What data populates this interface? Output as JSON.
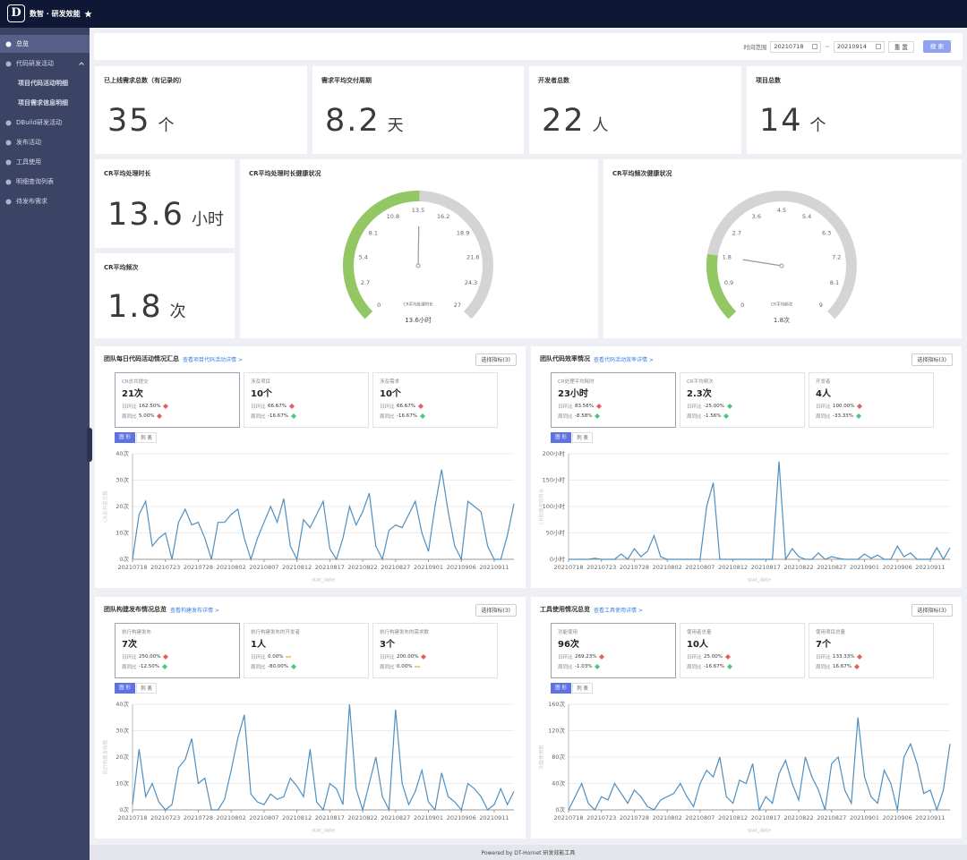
{
  "header": {
    "logo": "D",
    "title": "数智 · 研发效能"
  },
  "sidebar": [
    {
      "label": "总览",
      "active": true
    },
    {
      "label": "代码研发活动",
      "expanded": true
    },
    {
      "label": "项目代码活动明细",
      "sub": true
    },
    {
      "label": "项目需求信息明细",
      "sub": true
    },
    {
      "label": "DBuild研发活动"
    },
    {
      "label": "发布活动"
    },
    {
      "label": "工具使用"
    },
    {
      "label": "明细查询列表"
    },
    {
      "label": "待发布需求"
    }
  ],
  "filter": {
    "label": "时间范围",
    "start": "20210718",
    "separator": "~",
    "end": "20210914",
    "reset": "重 置",
    "search": "搜 索"
  },
  "kpis": [
    {
      "title": "已上线需求总数（有记录的）",
      "value": 35,
      "unit": "个"
    },
    {
      "title": "需求平均交付周期",
      "value": 8.2,
      "unit": "天"
    },
    {
      "title": "开发者总数",
      "value": 22,
      "unit": "人"
    },
    {
      "title": "项目总数",
      "value": 14,
      "unit": "个"
    }
  ],
  "cr_cards": [
    {
      "title": "CR平均处理时长",
      "value": 13.6,
      "unit": "小时"
    },
    {
      "title": "CR平均频次",
      "value": 1.8,
      "unit": "次"
    }
  ],
  "panels": [
    {
      "title": "团队每日代码活动情况汇总",
      "link": "查看项目代码活动详情 >",
      "button": "选择指标(3)",
      "tabs": [
        {
          "label": "图 形",
          "active": true
        },
        {
          "label": "列 表"
        }
      ],
      "cards": [
        {
          "name": "CR总共提交",
          "value": "21次",
          "active": true,
          "rows": [
            {
              "label": "日环比",
              "value": "162.50%",
              "trend": "up"
            },
            {
              "label": "周同比",
              "value": "5.00%",
              "trend": "up"
            }
          ]
        },
        {
          "name": "涉及项目",
          "value": "10个",
          "rows": [
            {
              "label": "日环比",
              "value": "66.67%",
              "trend": "up"
            },
            {
              "label": "周同比",
              "value": "-16.67%",
              "trend": "down"
            }
          ]
        },
        {
          "name": "涉及需求",
          "value": "10个",
          "rows": [
            {
              "label": "日环比",
              "value": "66.67%",
              "trend": "up"
            },
            {
              "label": "周同比",
              "value": "-16.67%",
              "trend": "down"
            }
          ]
        }
      ]
    },
    {
      "title": "团队代码效率情况",
      "link": "查看代码活动效率详情 >",
      "button": "选择指标(3)",
      "tabs": [
        {
          "label": "图 形",
          "active": true
        },
        {
          "label": "列 表"
        }
      ],
      "cards": [
        {
          "name": "CR处理平均耗时",
          "value": "23小时",
          "active": true,
          "rows": [
            {
              "label": "日环比",
              "value": "83.56%",
              "trend": "up"
            },
            {
              "label": "周同比",
              "value": "-8.58%",
              "trend": "down"
            }
          ]
        },
        {
          "name": "CR平均频次",
          "value": "2.3次",
          "rows": [
            {
              "label": "日环比",
              "value": "-25.00%",
              "trend": "down"
            },
            {
              "label": "周同比",
              "value": "-1.56%",
              "trend": "down"
            }
          ]
        },
        {
          "name": "开发者",
          "value": "4人",
          "rows": [
            {
              "label": "日环比",
              "value": "100.00%",
              "trend": "up"
            },
            {
              "label": "周同比",
              "value": "-33.33%",
              "trend": "down"
            }
          ]
        }
      ]
    },
    {
      "title": "团队构建发布情况总览",
      "link": "查看构建发布详情 >",
      "button": "选择指标(3)",
      "tabs": [
        {
          "label": "图 形",
          "active": true
        },
        {
          "label": "列 表"
        }
      ],
      "cards": [
        {
          "name": "执行构建发布",
          "value": "7次",
          "active": true,
          "rows": [
            {
              "label": "日环比",
              "value": "250.00%",
              "trend": "up"
            },
            {
              "label": "周同比",
              "value": "-12.50%",
              "trend": "down"
            }
          ]
        },
        {
          "name": "执行构建发布的开发者",
          "value": "1人",
          "rows": [
            {
              "label": "日环比",
              "value": "0.00%",
              "trend": "flat"
            },
            {
              "label": "周同比",
              "value": "-80.00%",
              "trend": "down"
            }
          ]
        },
        {
          "name": "执行构建发布的需求数",
          "value": "3个",
          "rows": [
            {
              "label": "日环比",
              "value": "200.00%",
              "trend": "up"
            },
            {
              "label": "周同比",
              "value": "0.00%",
              "trend": "flat"
            }
          ]
        }
      ]
    },
    {
      "title": "工具使用情况总览",
      "link": "查看工具使用详情 >",
      "button": "选择指标(3)",
      "tabs": [
        {
          "label": "图 形",
          "active": true
        },
        {
          "label": "列 表"
        }
      ],
      "cards": [
        {
          "name": "功能使用",
          "value": "96次",
          "active": true,
          "rows": [
            {
              "label": "日环比",
              "value": "269.23%",
              "trend": "up"
            },
            {
              "label": "周同比",
              "value": "-1.03%",
              "trend": "down"
            }
          ]
        },
        {
          "name": "使用者总量",
          "value": "10人",
          "rows": [
            {
              "label": "日环比",
              "value": "25.00%",
              "trend": "up"
            },
            {
              "label": "周同比",
              "value": "-16.67%",
              "trend": "down"
            }
          ]
        },
        {
          "name": "使用项目总量",
          "value": "7个",
          "rows": [
            {
              "label": "日环比",
              "value": "133.33%",
              "trend": "up"
            },
            {
              "label": "周同比",
              "value": "16.67%",
              "trend": "up"
            }
          ]
        }
      ]
    }
  ],
  "chart_data": [
    {
      "type": "gauge",
      "title": "CR平均处理时长健康状况",
      "lim": [
        0,
        27
      ],
      "ticks": [
        0,
        2.7,
        5.4,
        8.1,
        10.8,
        13.5,
        16.2,
        18.9,
        21.6,
        24.3,
        27
      ],
      "value": 13.6,
      "detail_name": "CR平均处理时长",
      "value_label": "13.6小时",
      "color": "#93c764",
      "track_color": "#d4d4d4"
    },
    {
      "type": "gauge",
      "title": "CR平均频次健康状况",
      "lim": [
        0,
        9
      ],
      "ticks": [
        0,
        0.9,
        1.8,
        2.7,
        3.6,
        4.5,
        5.4,
        6.3,
        7.2,
        8.1,
        9
      ],
      "value": 1.8,
      "detail_name": "CR平均频次",
      "value_label": "1.8次",
      "color": "#93c764",
      "track_color": "#d4d4d4"
    },
    {
      "type": "line",
      "x_label": "stat_date",
      "y_label": "CR总共提交数",
      "color": "#4f8fc0",
      "grid": true,
      "categories": [
        "20210718",
        null,
        null,
        null,
        null,
        "20210723",
        null,
        null,
        null,
        null,
        "20210728",
        null,
        null,
        null,
        null,
        "20210802",
        null,
        null,
        null,
        null,
        "20210807",
        null,
        null,
        null,
        null,
        "20210812",
        null,
        null,
        null,
        null,
        "20210817",
        null,
        null,
        null,
        null,
        "20210822",
        null,
        null,
        null,
        null,
        "20210827",
        null,
        null,
        null,
        null,
        "20210901",
        null,
        null,
        null,
        null,
        "20210906",
        null,
        null,
        null,
        null,
        "20210911",
        null,
        null,
        null
      ],
      "values": [
        0,
        17,
        22,
        5,
        8,
        10,
        0,
        14,
        19,
        13,
        14,
        8,
        0,
        14,
        14,
        17,
        19,
        8,
        0,
        8,
        14,
        20,
        14,
        23,
        5,
        0,
        15,
        12,
        17,
        22,
        4,
        0,
        8,
        20,
        13,
        18,
        25,
        5,
        0,
        11,
        13,
        12,
        17,
        22,
        10,
        3,
        20,
        34,
        18,
        5,
        0,
        22,
        20,
        18,
        5,
        0,
        0,
        9,
        21
      ],
      "ylim": [
        0,
        40
      ],
      "yticks": [
        {
          "value": 0,
          "label": "0次"
        },
        {
          "value": 10,
          "label": "10次"
        },
        {
          "value": 20,
          "label": "20次"
        },
        {
          "value": 30,
          "label": "30次"
        },
        {
          "value": 40,
          "label": "40次"
        }
      ]
    },
    {
      "type": "line",
      "x_label": "stat_date",
      "y_label": "CR处理平均时长",
      "color": "#4f8fc0",
      "grid": true,
      "categories": [
        "20210718",
        null,
        null,
        null,
        null,
        "20210723",
        null,
        null,
        null,
        null,
        "20210728",
        null,
        null,
        null,
        null,
        "20210802",
        null,
        null,
        null,
        null,
        "20210807",
        null,
        null,
        null,
        null,
        "20210812",
        null,
        null,
        null,
        null,
        "20210817",
        null,
        null,
        null,
        null,
        "20210822",
        null,
        null,
        null,
        null,
        "20210827",
        null,
        null,
        null,
        null,
        "20210901",
        null,
        null,
        null,
        null,
        "20210906",
        null,
        null,
        null,
        null,
        "20210911",
        null,
        null,
        null
      ],
      "values": [
        0,
        0,
        0,
        0,
        2,
        0,
        0,
        0,
        10,
        0,
        20,
        5,
        15,
        45,
        5,
        0,
        0,
        0,
        0,
        0,
        0,
        100,
        145,
        0,
        0,
        0,
        0,
        0,
        0,
        0,
        0,
        0,
        185,
        0,
        20,
        5,
        0,
        0,
        12,
        0,
        5,
        2,
        0,
        0,
        0,
        10,
        2,
        8,
        0,
        0,
        25,
        5,
        12,
        0,
        0,
        0,
        22,
        0,
        22
      ],
      "ylim": [
        0,
        200
      ],
      "yticks": [
        {
          "value": 0,
          "label": "0小时"
        },
        {
          "value": 50,
          "label": "50小时"
        },
        {
          "value": 100,
          "label": "100小时"
        },
        {
          "value": 150,
          "label": "150小时"
        },
        {
          "value": 200,
          "label": "200小时"
        }
      ]
    },
    {
      "type": "line",
      "x_label": "stat_date",
      "y_label": "执行构建发布数",
      "color": "#4f8fc0",
      "grid": true,
      "categories": [
        "20210718",
        null,
        null,
        null,
        null,
        "20210723",
        null,
        null,
        null,
        null,
        "20210728",
        null,
        null,
        null,
        null,
        "20210802",
        null,
        null,
        null,
        null,
        "20210807",
        null,
        null,
        null,
        null,
        "20210812",
        null,
        null,
        null,
        null,
        "20210817",
        null,
        null,
        null,
        null,
        "20210822",
        null,
        null,
        null,
        null,
        "20210827",
        null,
        null,
        null,
        null,
        "20210901",
        null,
        null,
        null,
        null,
        "20210906",
        null,
        null,
        null,
        null,
        "20210911",
        null,
        null,
        null
      ],
      "values": [
        2,
        23,
        5,
        10,
        3,
        0,
        2,
        16,
        19,
        27,
        10,
        12,
        0,
        0,
        4,
        15,
        27,
        36,
        6,
        3,
        2,
        6,
        4,
        5,
        12,
        9,
        5,
        23,
        3,
        0,
        10,
        8,
        2,
        40,
        8,
        0,
        10,
        20,
        5,
        0,
        38,
        10,
        2,
        7,
        15,
        3,
        0,
        14,
        5,
        3,
        0,
        10,
        8,
        5,
        0,
        2,
        8,
        2,
        7
      ],
      "ylim": [
        0,
        40
      ],
      "yticks": [
        {
          "value": 0,
          "label": "0次"
        },
        {
          "value": 10,
          "label": "10次"
        },
        {
          "value": 20,
          "label": "20次"
        },
        {
          "value": 30,
          "label": "30次"
        },
        {
          "value": 40,
          "label": "40次"
        }
      ]
    },
    {
      "type": "line",
      "x_label": "stat_date",
      "y_label": "功能使用数",
      "color": "#4f8fc0",
      "grid": true,
      "categories": [
        "20210718",
        null,
        null,
        null,
        null,
        "20210723",
        null,
        null,
        null,
        null,
        "20210728",
        null,
        null,
        null,
        null,
        "20210802",
        null,
        null,
        null,
        null,
        "20210807",
        null,
        null,
        null,
        null,
        "20210812",
        null,
        null,
        null,
        null,
        "20210817",
        null,
        null,
        null,
        null,
        "20210822",
        null,
        null,
        null,
        null,
        "20210827",
        null,
        null,
        null,
        null,
        "20210901",
        null,
        null,
        null,
        null,
        "20210906",
        null,
        null,
        null,
        null,
        "20210911",
        null,
        null,
        null
      ],
      "values": [
        0,
        20,
        40,
        10,
        0,
        20,
        15,
        40,
        25,
        10,
        30,
        20,
        5,
        0,
        15,
        20,
        25,
        40,
        20,
        5,
        40,
        60,
        50,
        80,
        20,
        10,
        45,
        40,
        70,
        0,
        20,
        10,
        55,
        75,
        40,
        15,
        80,
        50,
        30,
        0,
        70,
        80,
        30,
        10,
        140,
        50,
        20,
        10,
        60,
        40,
        0,
        80,
        100,
        70,
        25,
        30,
        0,
        30,
        100
      ],
      "ylim": [
        0,
        160
      ],
      "yticks": [
        {
          "value": 0,
          "label": "0次"
        },
        {
          "value": 40,
          "label": "40次"
        },
        {
          "value": 80,
          "label": "80次"
        },
        {
          "value": 120,
          "label": "120次"
        },
        {
          "value": 160,
          "label": "160次"
        }
      ]
    }
  ],
  "footer": "Powered by DT-Hornet 研发效能工具"
}
